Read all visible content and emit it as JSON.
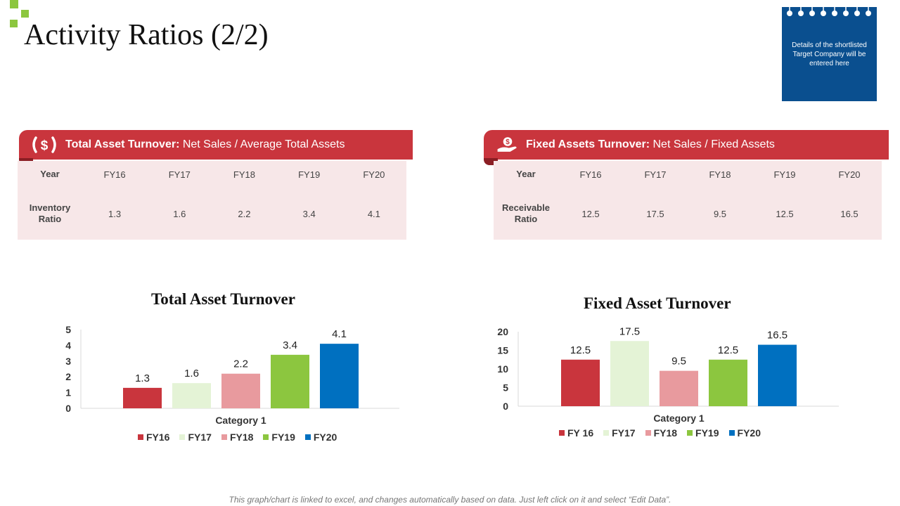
{
  "title": "Activity Ratios (2/2)",
  "note": "Details of the shortlisted Target Company will be entered here",
  "footer": "This graph/chart is linked to excel, and changes automatically based on data. Just left click on it and select “Edit Data”.",
  "colors": {
    "red": "#c9353d",
    "light_green": "#e4f3d6",
    "pink": "#e89a9e",
    "green": "#8cc63f",
    "blue": "#0070c0",
    "table_bg": "#f7e7e8",
    "notepad": "#0a4f8f"
  },
  "left_panel": {
    "icon": "dollar-bracket-icon",
    "banner_bold": "Total Asset Turnover:",
    "banner_text": " Net Sales / Average Total Assets",
    "header_label": "Year",
    "years": [
      "FY16",
      "FY17",
      "FY18",
      "FY19",
      "FY20"
    ],
    "row_label": "Inventory Ratio",
    "values": [
      "1.3",
      "1.6",
      "2.2",
      "3.4",
      "4.1"
    ]
  },
  "right_panel": {
    "icon": "hand-coin-icon",
    "banner_bold": "Fixed Assets Turnover:",
    "banner_text": " Net Sales / Fixed Assets",
    "header_label": "Year",
    "years": [
      "FY16",
      "FY17",
      "FY18",
      "FY19",
      "FY20"
    ],
    "row_label": "Receivable Ratio",
    "values": [
      "12.5",
      "17.5",
      "9.5",
      "12.5",
      "16.5"
    ]
  },
  "chart_data": [
    {
      "type": "bar",
      "title": "Total Asset Turnover",
      "categories": [
        "Category 1"
      ],
      "xlabel": "Category 1",
      "ylim": [
        0,
        5
      ],
      "yticks": [
        "0",
        "1",
        "2",
        "3",
        "4",
        "5"
      ],
      "legend": "bottom",
      "series": [
        {
          "name": "FY16",
          "values": [
            1.3
          ],
          "label": "1.3",
          "color": "#c9353d"
        },
        {
          "name": "FY17",
          "values": [
            1.6
          ],
          "label": "1.6",
          "color": "#e4f3d6"
        },
        {
          "name": "FY18",
          "values": [
            2.2
          ],
          "label": "2.2",
          "color": "#e89a9e"
        },
        {
          "name": "FY19",
          "values": [
            3.4
          ],
          "label": "3.4",
          "color": "#8cc63f"
        },
        {
          "name": "FY20",
          "values": [
            4.1
          ],
          "label": "4.1",
          "color": "#0070c0"
        }
      ]
    },
    {
      "type": "bar",
      "title": "Fixed Asset Turnover",
      "categories": [
        "Category 1"
      ],
      "xlabel": "Category 1",
      "ylim": [
        0,
        20
      ],
      "yticks": [
        "0",
        "5",
        "10",
        "15",
        "20"
      ],
      "legend": "bottom",
      "series": [
        {
          "name": "FY 16",
          "values": [
            12.5
          ],
          "label": "12.5",
          "color": "#c9353d"
        },
        {
          "name": "FY17",
          "values": [
            17.5
          ],
          "label": "17.5",
          "color": "#e4f3d6"
        },
        {
          "name": "FY18",
          "values": [
            9.5
          ],
          "label": "9.5",
          "color": "#e89a9e"
        },
        {
          "name": "FY19",
          "values": [
            12.5
          ],
          "label": "12.5",
          "color": "#8cc63f"
        },
        {
          "name": "FY20",
          "values": [
            16.5
          ],
          "label": "16.5",
          "color": "#0070c0"
        }
      ]
    }
  ]
}
